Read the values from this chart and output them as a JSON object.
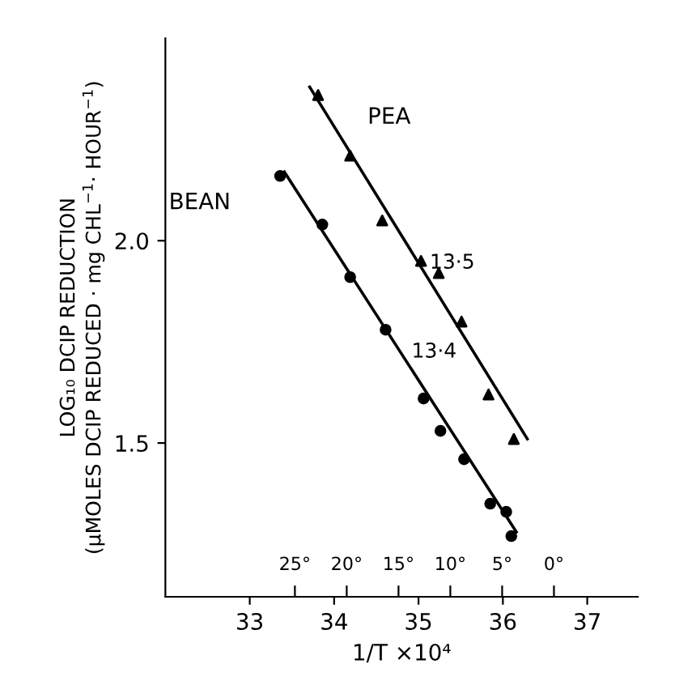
{
  "chart_data": {
    "type": "scatter",
    "xlabel": "1/T ×10⁴",
    "ylabel": "LOG₁₀ DCIP REDUCTION\n(µMOLES DCIP REDUCED · mg CHL$^{−1}$· HOUR$^{−1}$)",
    "xlim": [
      32.0,
      37.6
    ],
    "ylim": [
      1.12,
      2.5
    ],
    "xticks": [
      33,
      34,
      35,
      36,
      37
    ],
    "yticks": [
      1.5,
      {
        "value": 2.0,
        "label": "2.0"
      }
    ],
    "x2lim": [
      37.5,
      -8.1
    ],
    "x2ticks": [
      {
        "value": 25,
        "label": "25°"
      },
      {
        "value": 20,
        "label": "20°"
      },
      {
        "value": 15,
        "label": "15°"
      },
      {
        "value": 10,
        "label": "10°"
      },
      {
        "value": 5,
        "label": "5°"
      },
      {
        "value": 0,
        "label": "0°"
      }
    ],
    "grid": false,
    "legend": false,
    "series": [
      {
        "name": "PEA",
        "marker": "triangle",
        "color": "#000000",
        "x": [
          33.81,
          34.19,
          34.57,
          35.03,
          35.24,
          35.51,
          35.83,
          36.13
        ],
        "values": [
          2.36,
          2.21,
          2.05,
          1.95,
          1.92,
          1.8,
          1.62,
          1.51
        ]
      },
      {
        "type": "line",
        "marker": "none",
        "color": "#000000",
        "x": [
          33.71,
          36.29
        ],
        "values": [
          2.38,
          1.51
        ]
      },
      {
        "name": "BEAN",
        "marker": "circle",
        "color": "#000000",
        "x": [
          33.36,
          33.86,
          34.19,
          34.61,
          35.06,
          35.26,
          35.54,
          35.85,
          36.04,
          36.1
        ],
        "values": [
          2.16,
          2.04,
          1.91,
          1.78,
          1.61,
          1.53,
          1.46,
          1.35,
          1.33,
          1.27
        ]
      },
      {
        "type": "line",
        "marker": "none",
        "color": "#000000",
        "x": [
          33.41,
          36.16
        ],
        "values": [
          2.17,
          1.28
        ]
      }
    ],
    "annotations": [
      "13·5",
      "13·4"
    ]
  }
}
